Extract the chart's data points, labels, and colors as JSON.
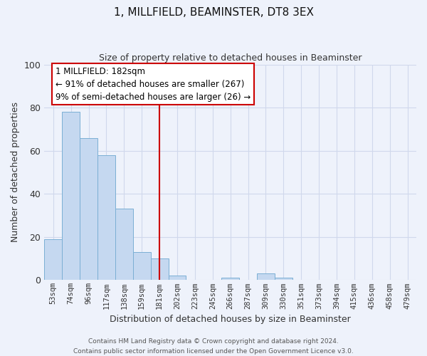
{
  "title": "1, MILLFIELD, BEAMINSTER, DT8 3EX",
  "subtitle": "Size of property relative to detached houses in Beaminster",
  "xlabel": "Distribution of detached houses by size in Beaminster",
  "ylabel": "Number of detached properties",
  "footer_line1": "Contains HM Land Registry data © Crown copyright and database right 2024.",
  "footer_line2": "Contains public sector information licensed under the Open Government Licence v3.0.",
  "bin_labels": [
    "53sqm",
    "74sqm",
    "96sqm",
    "117sqm",
    "138sqm",
    "159sqm",
    "181sqm",
    "202sqm",
    "223sqm",
    "245sqm",
    "266sqm",
    "287sqm",
    "309sqm",
    "330sqm",
    "351sqm",
    "373sqm",
    "394sqm",
    "415sqm",
    "436sqm",
    "458sqm",
    "479sqm"
  ],
  "bar_values": [
    19,
    78,
    66,
    58,
    33,
    13,
    10,
    2,
    0,
    0,
    1,
    0,
    3,
    1,
    0,
    0,
    0,
    0,
    0,
    0,
    0
  ],
  "bar_color": "#c5d8f0",
  "bar_edge_color": "#7bafd4",
  "vline_x_index": 6,
  "vline_color": "#cc0000",
  "ylim": [
    0,
    100
  ],
  "annotation_title": "1 MILLFIELD: 182sqm",
  "annotation_line1": "← 91% of detached houses are smaller (267)",
  "annotation_line2": "9% of semi-detached houses are larger (26) →",
  "annotation_box_color": "#cc0000",
  "bg_color": "#eef2fb",
  "grid_color": "#d0d8ec",
  "title_fontsize": 11,
  "subtitle_fontsize": 9,
  "ylabel_fontsize": 9,
  "xlabel_fontsize": 9,
  "tick_fontsize": 7.5,
  "footer_fontsize": 6.5
}
